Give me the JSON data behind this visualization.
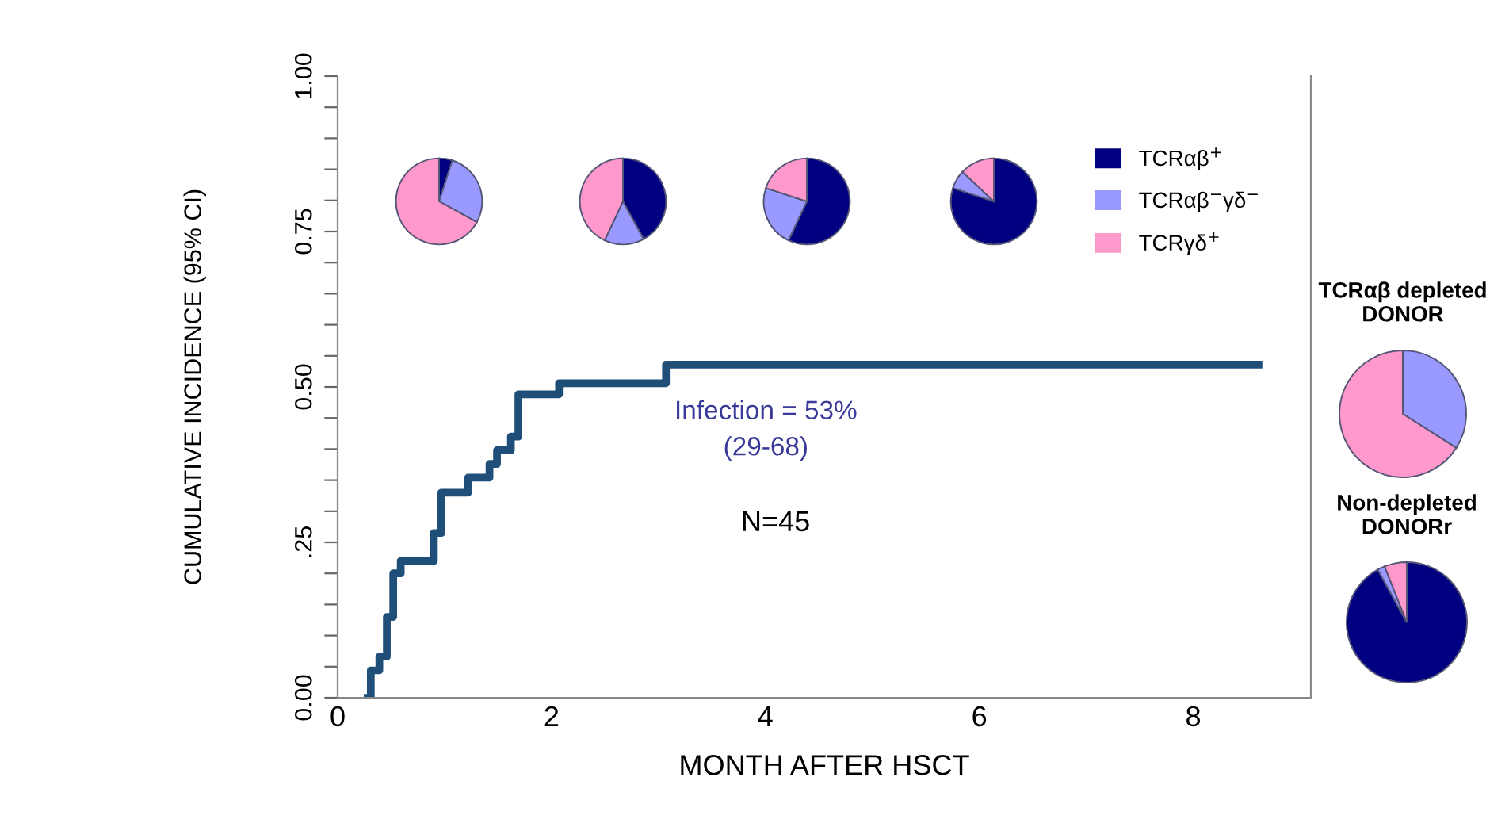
{
  "chart_data": [
    {
      "type": "step",
      "xlabel": "MONTH AFTER HSCT",
      "ylabel": "CUMULATIVE INCIDENCE (95% CI)",
      "xlim": [
        0,
        9.1
      ],
      "ylim": [
        0,
        1
      ],
      "xticks": [
        0,
        2,
        4,
        6,
        8
      ],
      "yticks": [
        {
          "value": 0,
          "label": "0.00"
        },
        {
          "value": 0.05,
          "label": null
        },
        {
          "value": 0.1,
          "label": null
        },
        {
          "value": 0.15,
          "label": null
        },
        {
          "value": 0.2,
          "label": null
        },
        {
          "value": 0.25,
          "label": ".25"
        },
        {
          "value": 0.3,
          "label": null
        },
        {
          "value": 0.35,
          "label": null
        },
        {
          "value": 0.4,
          "label": null
        },
        {
          "value": 0.45,
          "label": null
        },
        {
          "value": 0.5,
          "label": "0.50"
        },
        {
          "value": 0.55,
          "label": null
        },
        {
          "value": 0.6,
          "label": null
        },
        {
          "value": 0.65,
          "label": null
        },
        {
          "value": 0.7,
          "label": null
        },
        {
          "value": 0.75,
          "label": "0.75"
        },
        {
          "value": 0.8,
          "label": null
        },
        {
          "value": 0.85,
          "label": null
        },
        {
          "value": 0.9,
          "label": null
        },
        {
          "value": 0.95,
          "label": null
        },
        {
          "value": 1,
          "label": "1.00"
        }
      ],
      "series": [
        {
          "color": "#1f4e79",
          "x": [
            0.28,
            0.31,
            0.39,
            0.46,
            0.52,
            0.59,
            0.9,
            0.97,
            1.22,
            1.42,
            1.49,
            1.62,
            1.69,
            2.07,
            3.07,
            8.61
          ],
          "values": [
            0,
            0.044,
            0.066,
            0.13,
            0.2,
            0.22,
            0.265,
            0.33,
            0.354,
            0.376,
            0.398,
            0.42,
            0.488,
            0.506,
            0.536,
            0.536
          ]
        }
      ],
      "annotations": [
        "Infection = 53%\n(29-68)",
        "N=45"
      ],
      "grid": false,
      "legend": false
    },
    {
      "type": "pie",
      "categories": [
        null,
        null,
        null
      ],
      "values": [
        5,
        28,
        67
      ],
      "colors": [
        "#000080",
        "#9999ff",
        "#ff99cc"
      ]
    },
    {
      "type": "pie",
      "categories": [
        null,
        null,
        null
      ],
      "values": [
        42,
        15,
        43
      ],
      "colors": [
        "#000080",
        "#9999ff",
        "#ff99cc"
      ]
    },
    {
      "type": "pie",
      "categories": [
        null,
        null,
        null
      ],
      "values": [
        57,
        23,
        20
      ],
      "colors": [
        "#000080",
        "#9999ff",
        "#ff99cc"
      ]
    },
    {
      "type": "pie",
      "categories": [
        "TCRαβ$^{+}$",
        "TCRαβ$^{−}$γδ$^{−}$",
        "TCRγδ$^{+}$"
      ],
      "values": [
        80,
        7,
        13
      ],
      "colors": [
        "#000080",
        "#9999ff",
        "#ff99cc"
      ],
      "legend": "right"
    },
    {
      "type": "pie",
      "title": "TCRαβ depleted\nDONOR",
      "categories": [
        null,
        null
      ],
      "values": [
        34,
        66
      ],
      "colors": [
        "#9999ff",
        "#ff99cc"
      ]
    },
    {
      "type": "pie",
      "title": "Non-depleted\nDONORr",
      "categories": [
        null,
        null,
        null
      ],
      "values": [
        92,
        2,
        6
      ],
      "colors": [
        "#000080",
        "#9999ff",
        "#ff99cc"
      ]
    }
  ]
}
